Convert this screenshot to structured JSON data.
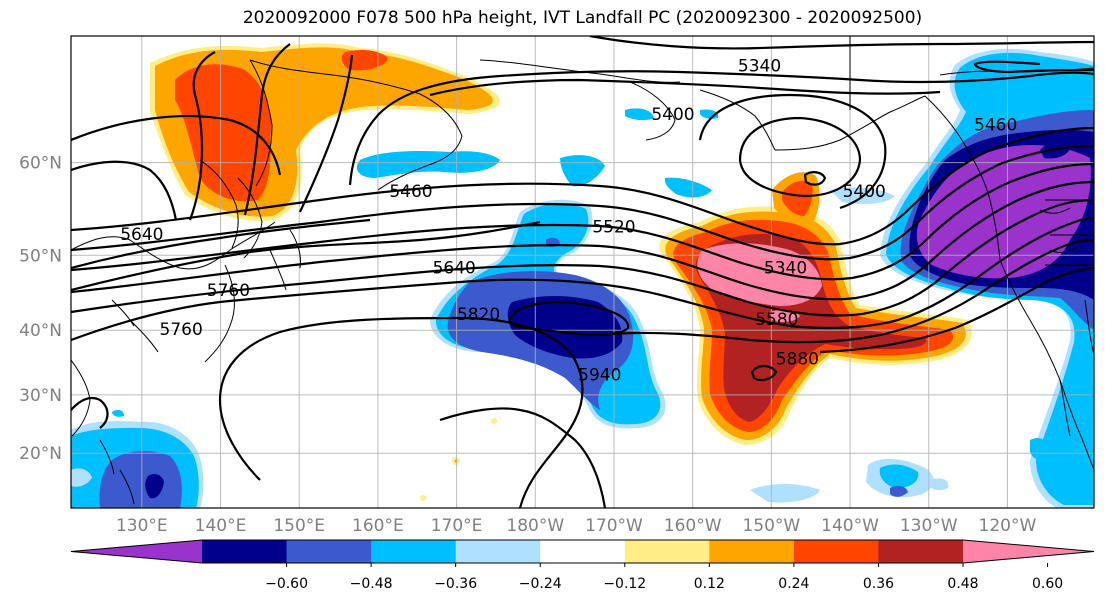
{
  "title": "2020092000 F078 500 hPa height, IVT Landfall PC (2020092300 - 2020092500)",
  "axes": {
    "lat_labels": [
      {
        "text": "60°N",
        "lat": 60
      },
      {
        "text": "50°N",
        "lat": 50
      },
      {
        "text": "40°N",
        "lat": 40
      },
      {
        "text": "30°N",
        "lat": 30
      },
      {
        "text": "20°N",
        "lat": 20
      }
    ],
    "lon_labels": [
      {
        "text": "130°E",
        "lon": 130
      },
      {
        "text": "140°E",
        "lon": 140
      },
      {
        "text": "150°E",
        "lon": 150
      },
      {
        "text": "160°E",
        "lon": 160
      },
      {
        "text": "170°E",
        "lon": 170
      },
      {
        "text": "180°W",
        "lon": 180
      },
      {
        "text": "170°W",
        "lon": 190
      },
      {
        "text": "160°W",
        "lon": 200
      },
      {
        "text": "150°W",
        "lon": 210
      },
      {
        "text": "140°W",
        "lon": 220
      },
      {
        "text": "130°W",
        "lon": 230
      },
      {
        "text": "120°W",
        "lon": 240
      }
    ],
    "lon_range": [
      121,
      251
    ],
    "lat_range": [
      10,
      70
    ],
    "gridlines": true
  },
  "contour_labels": [
    {
      "text": "5340",
      "lon": 208.5,
      "lat": 68.0
    },
    {
      "text": "5400",
      "lon": 197.5,
      "lat": 64.3
    },
    {
      "text": "5460",
      "lon": 238.5,
      "lat": 63.4
    },
    {
      "text": "5460",
      "lon": 164.2,
      "lat": 57.2
    },
    {
      "text": "5400",
      "lon": 221.8,
      "lat": 57.2
    },
    {
      "text": "5640",
      "lon": 130.0,
      "lat": 52.5
    },
    {
      "text": "5520",
      "lon": 190.0,
      "lat": 53.4
    },
    {
      "text": "5340",
      "lon": 211.8,
      "lat": 48.5
    },
    {
      "text": "5640",
      "lon": 169.7,
      "lat": 48.5
    },
    {
      "text": "5760",
      "lon": 141.0,
      "lat": 45.6
    },
    {
      "text": "5820",
      "lon": 172.8,
      "lat": 42.3
    },
    {
      "text": "5580",
      "lon": 210.7,
      "lat": 41.6
    },
    {
      "text": "5760",
      "lon": 135.0,
      "lat": 40.2
    },
    {
      "text": "5880",
      "lon": 213.3,
      "lat": 35.8
    },
    {
      "text": "5940",
      "lon": 188.2,
      "lat": 33.3
    }
  ],
  "colorbar": {
    "colors": [
      "#9933cc",
      "#00008b",
      "#3c5acd",
      "#00bfff",
      "#b0e0ff",
      "#ffffff",
      "#ffee88",
      "#ffa500",
      "#ff4500",
      "#b22222",
      "#ff85a8"
    ],
    "extend": "both",
    "tick_labels": [
      "−0.60",
      "−0.48",
      "−0.36",
      "−0.24",
      "−0.12",
      "0.12",
      "0.24",
      "0.36",
      "0.48",
      "0.60"
    ],
    "tick_values": [
      -0.6,
      -0.48,
      -0.36,
      -0.24,
      -0.12,
      0.12,
      0.24,
      0.36,
      0.48,
      0.6
    ]
  },
  "colors": {
    "contour": "#000000",
    "coastline": "#000000",
    "grid": "#b0b0b0",
    "axis_label": "#808080"
  }
}
